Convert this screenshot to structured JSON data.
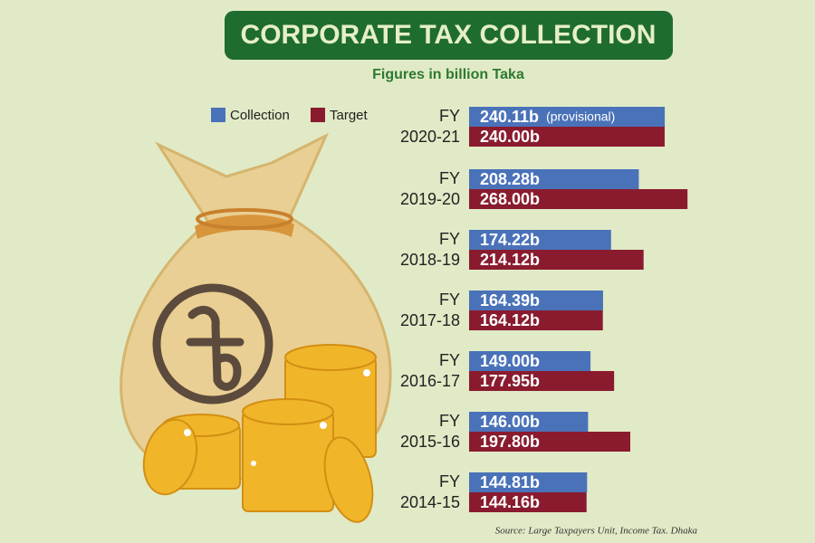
{
  "chart_data": {
    "type": "bar",
    "orientation": "horizontal",
    "title": "CORPORATE TAX COLLECTION",
    "subtitle": "Figures in billion Taka",
    "categories": [
      [
        "FY",
        "2020-21"
      ],
      [
        "FY",
        "2019-20"
      ],
      [
        "FY",
        "2018-19"
      ],
      [
        "FY",
        "2017-18"
      ],
      [
        "FY",
        "2016-17"
      ],
      [
        "FY",
        "2015-16"
      ],
      [
        "FY",
        "2014-15"
      ]
    ],
    "series": [
      {
        "name": "Collection",
        "color": "#4a72b9",
        "values": [
          240.11,
          208.28,
          174.22,
          164.39,
          149.0,
          146.0,
          144.81
        ],
        "value_labels": [
          "240.11b",
          "208.28b",
          "174.22b",
          "164.39b",
          "149.00b",
          "146.00b",
          "144.81b"
        ]
      },
      {
        "name": "Target",
        "color": "#8a1b2e",
        "values": [
          240.0,
          268.0,
          214.12,
          164.12,
          177.95,
          197.8,
          144.16
        ],
        "value_labels": [
          "240.00b",
          "268.00b",
          "214.12b",
          "164.12b",
          "177.95b",
          "197.80b",
          "144.16b"
        ]
      }
    ],
    "annotation": "(provisional)",
    "source": "Source: Large Taxpayers Unit, Income Tax. Dhaka"
  }
}
